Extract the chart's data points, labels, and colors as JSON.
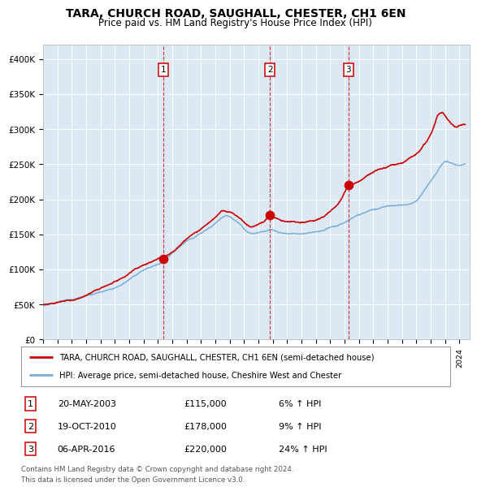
{
  "title": "TARA, CHURCH ROAD, SAUGHALL, CHESTER, CH1 6EN",
  "subtitle": "Price paid vs. HM Land Registry's House Price Index (HPI)",
  "title_fontsize": 10,
  "subtitle_fontsize": 8.5,
  "plot_bg_color": "#dce9f5",
  "red_line_color": "#cc0000",
  "blue_line_color": "#7aaed6",
  "ylim": [
    0,
    420000
  ],
  "yticks": [
    0,
    50000,
    100000,
    150000,
    200000,
    250000,
    300000,
    350000,
    400000
  ],
  "ytick_labels": [
    "£0",
    "£50K",
    "£100K",
    "£150K",
    "£200K",
    "£250K",
    "£300K",
    "£350K",
    "£400K"
  ],
  "sales": [
    {
      "label": "1",
      "date": "20-MAY-2003",
      "price": 115000,
      "x_year": 2003.38,
      "pct": "6%",
      "dir": "↑"
    },
    {
      "label": "2",
      "date": "19-OCT-2010",
      "price": 178000,
      "x_year": 2010.8,
      "pct": "9%",
      "dir": "↑"
    },
    {
      "label": "3",
      "date": "06-APR-2016",
      "price": 220000,
      "x_year": 2016.27,
      "pct": "24%",
      "dir": "↑"
    }
  ],
  "legend_entries": [
    "TARA, CHURCH ROAD, SAUGHALL, CHESTER, CH1 6EN (semi-detached house)",
    "HPI: Average price, semi-detached house, Cheshire West and Chester"
  ],
  "footer_lines": [
    "Contains HM Land Registry data © Crown copyright and database right 2024.",
    "This data is licensed under the Open Government Licence v3.0."
  ],
  "xmin": 1995.0,
  "xmax": 2024.7
}
